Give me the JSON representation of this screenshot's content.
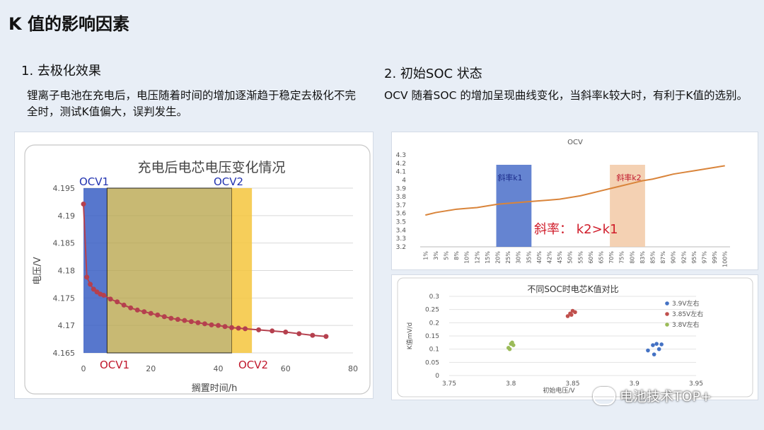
{
  "slide": {
    "title": "K 值的影响因素",
    "left": {
      "heading": "1.  去极化效果",
      "body": "锂离子电池在充电后，电压随着时间的增加逐渐趋于稳定去极化不完全时，测试K值偏大，误判发生。"
    },
    "right": {
      "heading": "2. 初始SOC 状态",
      "body": "OCV 随着SOC 的增加呈现曲线变化，当斜率k较大时，有利于K值的选别。"
    },
    "watermark": "电池技术TOP+"
  },
  "chart_data": [
    {
      "type": "line",
      "title": "充电后电芯电压变化情况",
      "xlabel": "搁置时间/h",
      "ylabel": "电压/V",
      "xlim": [
        0,
        80
      ],
      "ylim": [
        4.165,
        4.195
      ],
      "x_ticks": [
        "0",
        "20",
        "40",
        "60",
        "80"
      ],
      "y_ticks": [
        "4.165",
        "4.17",
        "4.175",
        "4.18",
        "4.185",
        "4.19",
        "4.195"
      ],
      "series": [
        {
          "x": [
            0,
            1,
            2,
            3,
            4,
            5,
            6,
            8,
            10,
            12,
            14,
            16,
            18,
            20,
            22,
            24,
            26,
            28,
            30,
            32,
            34,
            36,
            38,
            40,
            42,
            44,
            46,
            48,
            52,
            56,
            60,
            64,
            68,
            72
          ],
          "y": [
            4.1921,
            4.1788,
            4.1775,
            4.1766,
            4.1761,
            4.1757,
            4.1755,
            4.1748,
            4.1743,
            4.1737,
            4.1732,
            4.1728,
            4.1725,
            4.1722,
            4.1719,
            4.1716,
            4.1713,
            4.1711,
            4.1709,
            4.1707,
            4.1705,
            4.1703,
            4.1701,
            4.17,
            4.1698,
            4.1696,
            4.1695,
            4.1694,
            4.1692,
            4.169,
            4.1688,
            4.1685,
            4.1682,
            4.168
          ]
        }
      ],
      "regions": [
        {
          "label": "OCV1",
          "x_from": 0,
          "x_to": 7,
          "color": "#3a5fc4"
        },
        {
          "label": "",
          "x_from": 7,
          "x_to": 44,
          "color": "#b5a244"
        },
        {
          "label": "OCV2",
          "x_from": 44,
          "x_to": 50,
          "color": "#f4c63d"
        }
      ],
      "annotations": [
        "OCV1",
        "OCV2",
        "OCV1",
        "OCV2"
      ],
      "grid": true
    },
    {
      "type": "line",
      "title": "OCV",
      "categories": [
        "1%",
        "3%",
        "5%",
        "8%",
        "10%",
        "12%",
        "15%",
        "20%",
        "25%",
        "30%",
        "35%",
        "40%",
        "42%",
        "45%",
        "50%",
        "55%",
        "60%",
        "65%",
        "70%",
        "75%",
        "80%",
        "83%",
        "85%",
        "87%",
        "90%",
        "92%",
        "95%",
        "97%",
        "99%",
        "100%"
      ],
      "ylim": [
        3.2,
        4.3
      ],
      "y_ticks": [
        "3.2",
        "3.3",
        "3.4",
        "3.5",
        "3.6",
        "3.7",
        "3.8",
        "3.9",
        "4",
        "4.1",
        "4.2",
        "4.3"
      ],
      "series": [
        {
          "values": [
            3.58,
            3.61,
            3.63,
            3.65,
            3.66,
            3.67,
            3.69,
            3.71,
            3.72,
            3.73,
            3.74,
            3.75,
            3.76,
            3.77,
            3.79,
            3.81,
            3.84,
            3.87,
            3.9,
            3.93,
            3.96,
            3.99,
            4.01,
            4.04,
            4.07,
            4.09,
            4.11,
            4.13,
            4.15,
            4.17
          ]
        }
      ],
      "regions": [
        {
          "label": "斜率k1",
          "from_index": 7,
          "to_index": 10,
          "color": "#4a6fc9"
        },
        {
          "label": "斜率k2",
          "from_index": 18,
          "to_index": 21,
          "color": "#f2c9a6"
        }
      ],
      "annotation": "斜率：  k2>k1"
    },
    {
      "type": "scatter",
      "title": "不同SOC时电芯K值对比",
      "xlabel": "初始电压/V",
      "ylabel": "K值mV/d",
      "xlim": [
        3.75,
        3.95
      ],
      "ylim": [
        0,
        0.3
      ],
      "x_ticks": [
        "3.75",
        "3.8",
        "3.85",
        "3.9",
        "3.95"
      ],
      "y_ticks": [
        "0",
        "0.05",
        "0.1",
        "0.15",
        "0.2",
        "0.25",
        "0.3"
      ],
      "series": [
        {
          "name": "3.9V左右",
          "color": "#4472c4",
          "x": [
            3.911,
            3.915,
            3.918,
            3.922,
            3.916,
            3.92
          ],
          "y": [
            0.095,
            0.115,
            0.12,
            0.118,
            0.08,
            0.1
          ]
        },
        {
          "name": "3.85V左右",
          "color": "#c0504d",
          "x": [
            3.846,
            3.848,
            3.85,
            3.852,
            3.849
          ],
          "y": [
            0.225,
            0.235,
            0.245,
            0.24,
            0.23
          ]
        },
        {
          "name": "3.8V左右",
          "color": "#9bbb59",
          "x": [
            3.798,
            3.8,
            3.802,
            3.799,
            3.801
          ],
          "y": [
            0.105,
            0.12,
            0.115,
            0.1,
            0.125
          ]
        }
      ],
      "legend": "right"
    }
  ]
}
